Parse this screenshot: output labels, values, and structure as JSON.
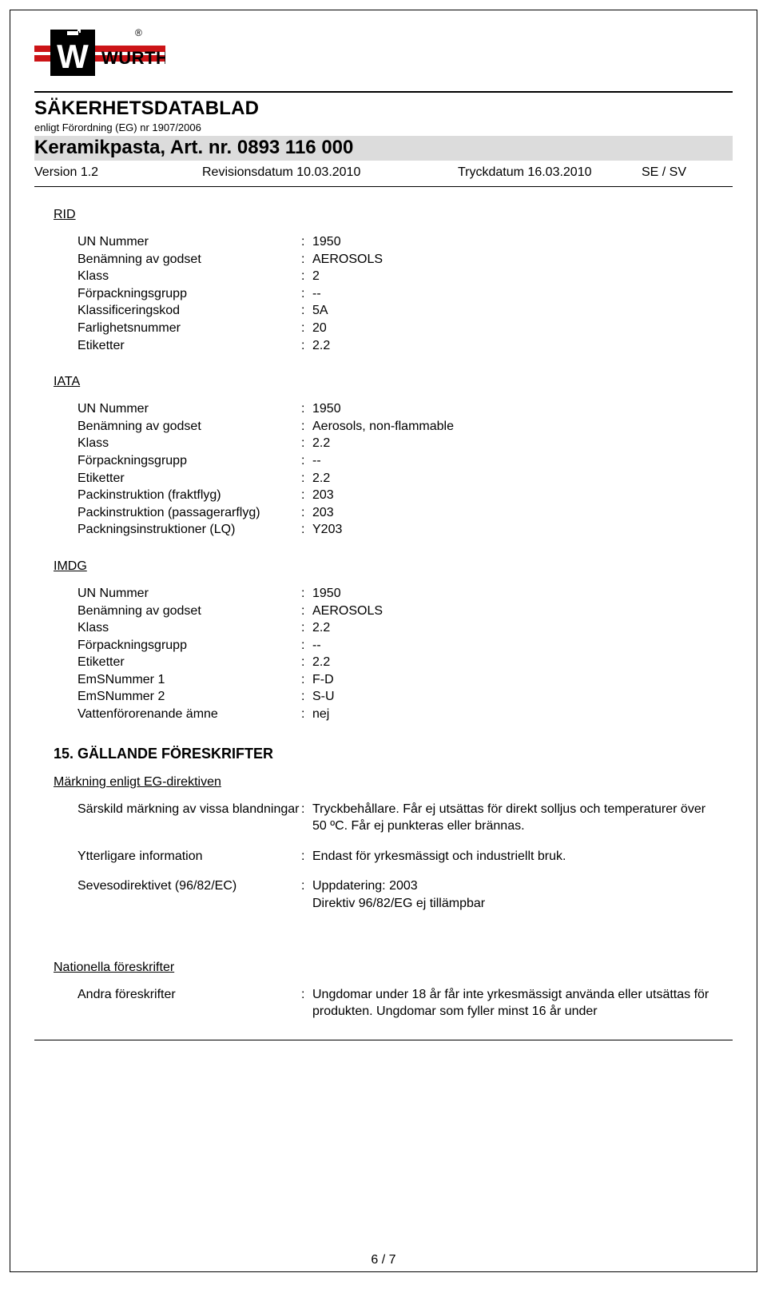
{
  "colors": {
    "text": "#000000",
    "background": "#ffffff",
    "bar_bg": "#dcdcdc",
    "brand_red": "#cc1417",
    "brand_black": "#000000"
  },
  "header": {
    "brand": "WURTH",
    "title": "SÄKERHETSDATABLAD",
    "subtitle": "enligt Förordning (EG) nr 1907/2006",
    "product": "Keramikpasta, Art. nr. 0893 116 000",
    "version": "Version 1.2",
    "revision": "Revisionsdatum 10.03.2010",
    "printdate": "Tryckdatum 16.03.2010",
    "lang": "SE / SV"
  },
  "sections": {
    "rid": {
      "label": "RID",
      "rows": [
        {
          "k": "UN Nummer",
          "v": "1950"
        },
        {
          "k": "Benämning av godset",
          "v": "AEROSOLS"
        },
        {
          "k": "Klass",
          "v": "2"
        },
        {
          "k": "Förpackningsgrupp",
          "v": "--"
        },
        {
          "k": "Klassificeringskod",
          "v": "5A"
        },
        {
          "k": "Farlighetsnummer",
          "v": "20"
        },
        {
          "k": "Etiketter",
          "v": "2.2"
        }
      ]
    },
    "iata": {
      "label": "IATA",
      "rows": [
        {
          "k": "UN Nummer",
          "v": "1950"
        },
        {
          "k": "Benämning av godset",
          "v": "Aerosols, non-flammable"
        },
        {
          "k": "Klass",
          "v": "2.2"
        },
        {
          "k": "Förpackningsgrupp",
          "v": "--"
        },
        {
          "k": "Etiketter",
          "v": "2.2"
        },
        {
          "k": "Packinstruktion (fraktflyg)",
          "v": "203"
        },
        {
          "k": "Packinstruktion (passagerarflyg)",
          "v": "203"
        },
        {
          "k": "Packningsinstruktioner (LQ)",
          "v": "Y203"
        }
      ]
    },
    "imdg": {
      "label": "IMDG",
      "rows": [
        {
          "k": "UN Nummer",
          "v": "1950"
        },
        {
          "k": "Benämning av godset",
          "v": "AEROSOLS"
        },
        {
          "k": "Klass",
          "v": "2.2"
        },
        {
          "k": "Förpackningsgrupp",
          "v": "--"
        },
        {
          "k": "Etiketter",
          "v": "2.2"
        },
        {
          "k": "EmSNummer 1",
          "v": "F-D"
        },
        {
          "k": "EmSNummer 2",
          "v": "S-U"
        },
        {
          "k": "Vattenförorenande ämne",
          "v": "nej"
        }
      ]
    }
  },
  "regs": {
    "heading": "15. GÄLLANDE FÖRESKRIFTER",
    "subheading": "Märkning enligt EG-direktiven",
    "rows": [
      {
        "k": "Särskild märkning av vissa blandningar",
        "v": "Tryckbehållare. Får ej utsättas för direkt solljus och temperaturer över 50 ºC. Får ej punkteras eller brännas."
      },
      {
        "k": "Ytterligare information",
        "v": "Endast för yrkesmässigt och industriellt bruk."
      },
      {
        "k": "Sevesodirektivet (96/82/EC)",
        "v": "Uppdatering: 2003\nDirektiv 96/82/EG ej tillämpbar"
      }
    ],
    "national_label": "Nationella föreskrifter",
    "national_rows": [
      {
        "k": "Andra föreskrifter",
        "v": "Ungdomar under 18 år får inte yrkesmässigt använda eller utsättas för produkten. Ungdomar som fyller minst 16 år under"
      }
    ]
  },
  "page_number": "6 / 7"
}
